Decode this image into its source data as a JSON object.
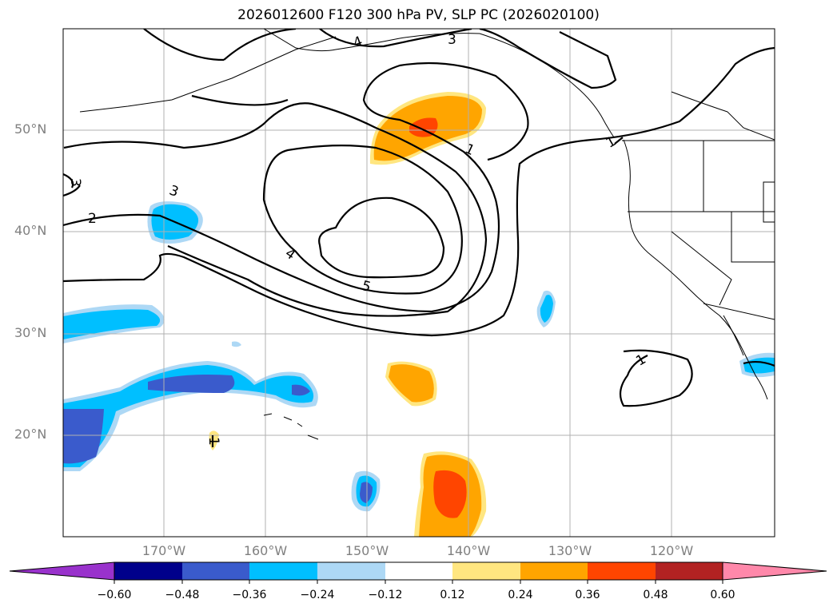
{
  "title": "2026012600 F120 300 hPa PV, SLP PC (2026020100)",
  "lat_labels": [
    "50°N",
    "40°N",
    "30°N",
    "20°N"
  ],
  "lon_labels": [
    "170°W",
    "160°W",
    "150°W",
    "140°W",
    "130°W",
    "120°W"
  ],
  "contour_labels": [
    "3",
    "4",
    "3",
    "4",
    "5",
    "1",
    "2",
    "1",
    "3",
    "1",
    "1"
  ],
  "colorbar": {
    "ticks": [
      "−0.60",
      "−0.48",
      "−0.36",
      "−0.24",
      "−0.12",
      "0.12",
      "0.24",
      "0.36",
      "0.48",
      "0.60"
    ],
    "colors": [
      "#9932cc",
      "#00008b",
      "#3a5bcc",
      "#00bfff",
      "#add8f5",
      "#ffffff",
      "#ffe680",
      "#ffa500",
      "#ff4500",
      "#b22222",
      "#ff88aa"
    ]
  }
}
